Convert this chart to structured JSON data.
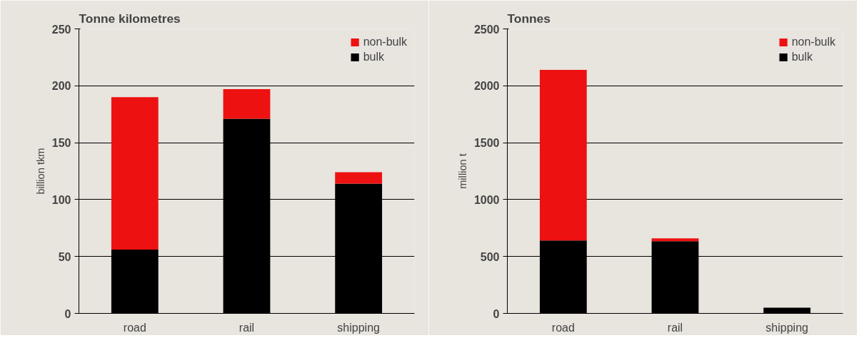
{
  "chart_data": [
    {
      "type": "bar",
      "title": "Tonne kilometres",
      "ylabel": "billion tkm",
      "categories": [
        "road",
        "rail",
        "shipping"
      ],
      "stacked": true,
      "ylim": [
        0,
        250
      ],
      "yticks": [
        0,
        50,
        100,
        150,
        200,
        250
      ],
      "grid": "y",
      "legend": "top right",
      "series": [
        {
          "name": "bulk",
          "color": "#000000",
          "values": [
            56,
            171,
            114
          ]
        },
        {
          "name": "non-bulk",
          "color": "#ee1111",
          "values": [
            134,
            26,
            10
          ]
        }
      ]
    },
    {
      "type": "bar",
      "title": "Tonnes",
      "ylabel": "million t",
      "categories": [
        "road",
        "rail",
        "shipping"
      ],
      "stacked": true,
      "ylim": [
        0,
        2500
      ],
      "yticks": [
        0,
        500,
        1000,
        1500,
        2000,
        2500
      ],
      "grid": "y",
      "legend": "top right",
      "series": [
        {
          "name": "bulk",
          "color": "#000000",
          "values": [
            640,
            635,
            50
          ]
        },
        {
          "name": "non-bulk",
          "color": "#ee1111",
          "values": [
            1500,
            25,
            0
          ]
        }
      ]
    }
  ]
}
